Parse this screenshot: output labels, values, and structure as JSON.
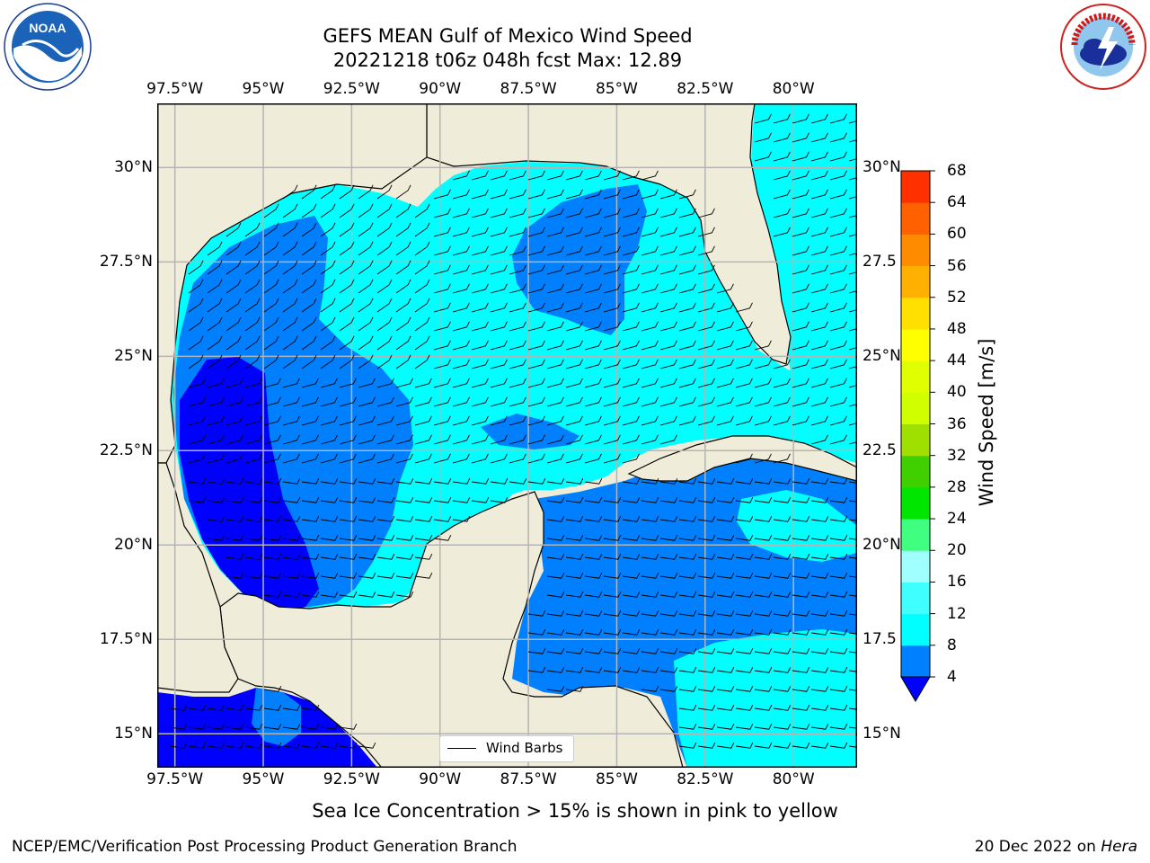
{
  "title_line1": "GEFS MEAN Gulf of Mexico Wind Speed",
  "title_line2": "20221218 t06z 048h fcst   Max: 12.89",
  "lon_ticks": [
    "97.5°W",
    "95°W",
    "92.5°W",
    "90°W",
    "87.5°W",
    "85°W",
    "82.5°W",
    "80°W"
  ],
  "lon_values": [
    -97.5,
    -95,
    -92.5,
    -90,
    -87.5,
    -85,
    -82.5,
    -80
  ],
  "lat_ticks_left": [
    "30°N",
    "27.5°N",
    "25°N",
    "22.5°N",
    "20°N",
    "17.5°N",
    "15°N"
  ],
  "lat_ticks_right": [
    "30°N",
    "27.5",
    "25°N",
    "22.5",
    "20°N",
    "17.5",
    "15°N"
  ],
  "lat_values": [
    30,
    27.5,
    25,
    22.5,
    20,
    17.5,
    15
  ],
  "map_extent": {
    "lon": [
      -98,
      -78.2
    ],
    "lat": [
      14.1,
      31.7
    ]
  },
  "colorbar": {
    "title": "Wind Speed [m/s]",
    "labels": [
      "68",
      "64",
      "60",
      "56",
      "52",
      "48",
      "44",
      "40",
      "36",
      "32",
      "28",
      "24",
      "20",
      "16",
      "12",
      "8",
      "4"
    ],
    "levels": [
      4,
      8,
      12,
      16,
      20,
      24,
      28,
      32,
      36,
      40,
      44,
      48,
      52,
      56,
      60,
      64,
      68
    ],
    "colors": [
      "#0080ff",
      "#00ffff",
      "#40ffff",
      "#a0ffff",
      "#40ff80",
      "#00e600",
      "#40d000",
      "#a0e000",
      "#d0ff00",
      "#e0ff00",
      "#ffff00",
      "#ffe000",
      "#ffb000",
      "#ff8c00",
      "#ff6000",
      "#ff3000",
      "#ff0000"
    ],
    "under_color": "#0000ff"
  },
  "legend_label": "Wind Barbs",
  "note": "Sea Ice Concentration > 15% is shown in pink to yellow",
  "footer_left": "NCEP/EMC/Verification Post Processing Product Generation Branch",
  "footer_right_prefix": "20 Dec 2022 on ",
  "footer_right_machine": "Hera",
  "logos": [
    "noaa-logo",
    "nws-logo"
  ],
  "colors": {
    "land": "#efedda",
    "grid": "#b4b4b4",
    "coast": "#000000"
  }
}
